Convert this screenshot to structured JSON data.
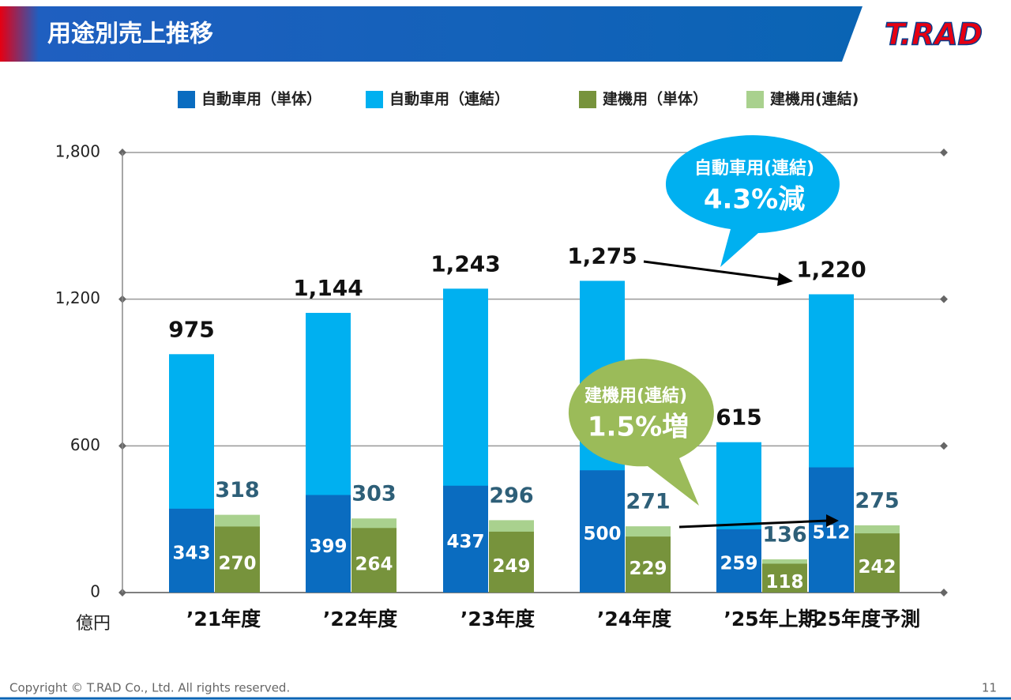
{
  "header": {
    "title": "用途別売上推移",
    "logo": "T.RAD"
  },
  "chart_data": {
    "type": "bar",
    "categories": [
      "’21年度",
      "’22年度",
      "’23年度",
      "’24年度",
      "’25年上期",
      "’25年度予測"
    ],
    "series": [
      {
        "name": "自動車用（単体）",
        "color": "#0a6cc0",
        "values": [
          343,
          399,
          437,
          500,
          259,
          512
        ]
      },
      {
        "name": "自動車用（連結）",
        "color": "#00b0f0",
        "values": [
          975,
          1144,
          1243,
          1275,
          615,
          1220
        ],
        "value_labels": [
          "975",
          "1,144",
          "1,243",
          "1,275",
          "615",
          "1,220"
        ]
      },
      {
        "name": "建機用（単体）",
        "color": "#77933c",
        "values": [
          270,
          264,
          249,
          229,
          118,
          242
        ]
      },
      {
        "name": "建機用(連結)",
        "color": "#a9d18e",
        "values": [
          318,
          303,
          296,
          271,
          136,
          275
        ]
      }
    ],
    "ylim": [
      0,
      1800
    ],
    "yticks": [
      0,
      600,
      {
        "value": 1200,
        "label": "1,200"
      },
      {
        "value": 1800,
        "label": "1,800"
      }
    ],
    "grid": true,
    "y_unit": "億円",
    "annotations": [
      {
        "line1": "自動車用(連結)",
        "line2": "4.3%減"
      },
      {
        "line1": "建機用(連結)",
        "line2": "1.5%増"
      }
    ]
  },
  "footer": {
    "copyright": "Copyright © T.RAD Co., Ltd. All rights reserved.",
    "page": "11"
  }
}
